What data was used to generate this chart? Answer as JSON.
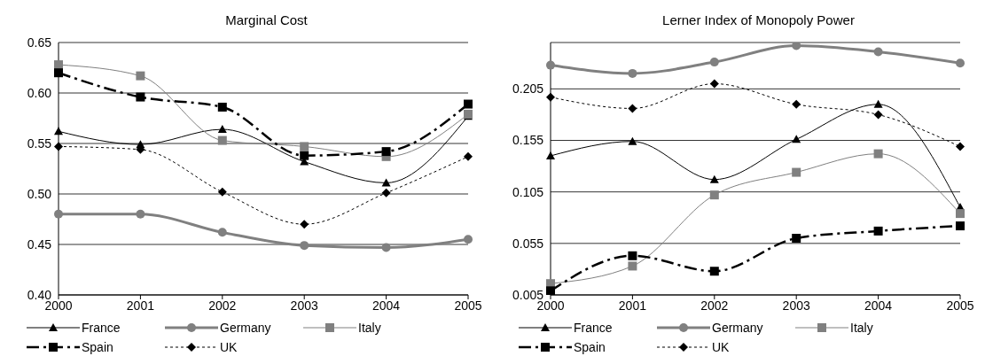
{
  "chart_data": [
    {
      "type": "line",
      "title": "Marginal Cost",
      "categories": [
        "2000",
        "2001",
        "2002",
        "2003",
        "2004",
        "2005"
      ],
      "ylim": [
        0.4,
        0.65
      ],
      "yticks": [
        {
          "value": 0.4,
          "label": "0.40"
        },
        {
          "value": 0.45,
          "label": "0.45"
        },
        {
          "value": 0.5,
          "label": "0.50"
        },
        {
          "value": 0.55,
          "label": "0.55"
        },
        {
          "value": 0.6,
          "label": "0.60"
        },
        {
          "value": 0.65,
          "label": "0.65"
        }
      ],
      "grid": "y",
      "legend": "bottom",
      "series": [
        {
          "name": "France",
          "color": "#000000",
          "marker": "triangle",
          "line_style": "solid",
          "values": [
            0.562,
            0.549,
            0.564,
            0.532,
            0.511,
            0.577
          ]
        },
        {
          "name": "Germany",
          "color": "#808080",
          "marker": "circle",
          "line_style": "solid",
          "values": [
            0.48,
            0.48,
            0.462,
            0.449,
            0.447,
            0.455
          ]
        },
        {
          "name": "Italy",
          "color": "#808080",
          "marker": "square",
          "line_style": "solid",
          "values": [
            0.628,
            0.617,
            0.553,
            0.547,
            0.537,
            0.579
          ]
        },
        {
          "name": "Spain",
          "color": "#000000",
          "marker": "square",
          "line_style": "dashed",
          "values": [
            0.62,
            0.596,
            0.586,
            0.538,
            0.542,
            0.589
          ]
        },
        {
          "name": "UK",
          "color": "#000000",
          "marker": "diamond",
          "line_style": "dotted",
          "values": [
            0.547,
            0.544,
            0.502,
            0.47,
            0.501,
            0.537
          ]
        }
      ]
    },
    {
      "type": "line",
      "title": "Lerner Index of Monopoly Power",
      "categories": [
        "2000",
        "2001",
        "2002",
        "2003",
        "2004",
        "2005"
      ],
      "ylim": [
        0.005,
        0.25
      ],
      "yticks": [
        0.005,
        0.055,
        0.105,
        0.155,
        0.205
      ],
      "grid": "y",
      "legend": "bottom",
      "series": [
        {
          "name": "France",
          "color": "#000000",
          "marker": "triangle",
          "line_style": "solid",
          "values": [
            0.14,
            0.154,
            0.117,
            0.156,
            0.19,
            0.09
          ]
        },
        {
          "name": "Germany",
          "color": "#808080",
          "marker": "circle",
          "line_style": "solid",
          "values": [
            0.228,
            0.22,
            0.231,
            0.247,
            0.241,
            0.23
          ]
        },
        {
          "name": "Italy",
          "color": "#808080",
          "marker": "square",
          "line_style": "solid",
          "values": [
            0.016,
            0.033,
            0.102,
            0.124,
            0.142,
            0.084
          ]
        },
        {
          "name": "Spain",
          "color": "#000000",
          "marker": "square",
          "line_style": "dashed",
          "values": [
            0.009,
            0.043,
            0.028,
            0.06,
            0.067,
            0.072
          ]
        },
        {
          "name": "UK",
          "color": "#000000",
          "marker": "diamond",
          "line_style": "dotted",
          "values": [
            0.197,
            0.186,
            0.21,
            0.19,
            0.18,
            0.149
          ]
        }
      ]
    }
  ]
}
